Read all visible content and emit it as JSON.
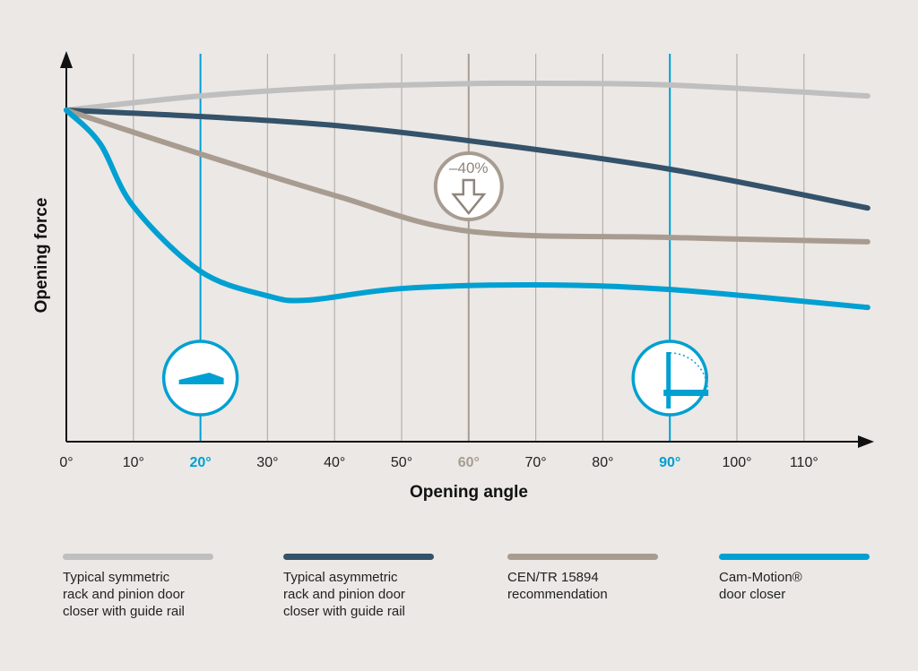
{
  "chart_data": {
    "type": "line",
    "xlabel": "Opening angle",
    "ylabel": "Opening force",
    "xlim": [
      0,
      120
    ],
    "x_ticks": [
      "0°",
      "10°",
      "20°",
      "30°",
      "40°",
      "50°",
      "60°",
      "70°",
      "80°",
      "90°",
      "100°",
      "110°"
    ],
    "highlighted_ticks": {
      "20°": "#00a0d2",
      "60°": "#a89c91",
      "90°": "#00a0d2"
    },
    "y_scale": "relative, no tick labels",
    "grid": "vertical",
    "annotation": "–40%",
    "series": [
      {
        "name": "Typical symmetric rack and pinion door closer with guide rail",
        "color": "#bfbfbf",
        "points": [
          [
            0,
            100
          ],
          [
            20,
            104.3
          ],
          [
            40,
            106.9
          ],
          [
            60,
            108
          ],
          [
            70,
            108.1
          ],
          [
            90,
            107.6
          ],
          [
            119.5,
            104.3
          ]
        ]
      },
      {
        "name": "Typical asymmetric rack and pinion door closer with guide rail",
        "color": "#34526a",
        "points": [
          [
            0,
            100
          ],
          [
            20,
            98.1
          ],
          [
            40,
            95.4
          ],
          [
            60,
            90.8
          ],
          [
            90,
            82.2
          ],
          [
            119.5,
            70.5
          ]
        ]
      },
      {
        "name": "CEN/TR 15894 recommendation",
        "color": "#a89c91",
        "points": [
          [
            0,
            100
          ],
          [
            20,
            86.8
          ],
          [
            40,
            74.3
          ],
          [
            60,
            63.5
          ],
          [
            90,
            61.6
          ],
          [
            119.5,
            60.3
          ]
        ]
      },
      {
        "name": "Cam-Motion® door closer",
        "color": "#00a0d2",
        "points": [
          [
            0,
            100
          ],
          [
            5,
            90
          ],
          [
            10,
            71
          ],
          [
            20,
            51.4
          ],
          [
            30,
            44
          ],
          [
            36,
            42.7
          ],
          [
            50,
            46.2
          ],
          [
            70,
            47.3
          ],
          [
            90,
            45.9
          ],
          [
            119.5,
            40.5
          ]
        ]
      }
    ],
    "legend_placement": "bottom"
  }
}
